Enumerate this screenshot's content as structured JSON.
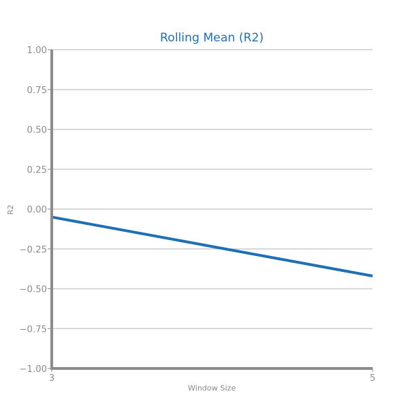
{
  "chart_data": {
    "type": "line",
    "title": "Rolling Mean (R2)",
    "xlabel": "Window Size",
    "ylabel": "R2",
    "x": [
      3,
      5
    ],
    "x_ticks": [
      "3",
      "5"
    ],
    "xlim": [
      3,
      5
    ],
    "ylim": [
      -1.0,
      1.0
    ],
    "y_ticks": [
      1.0,
      0.75,
      0.5,
      0.25,
      0.0,
      -0.25,
      -0.5,
      -0.75,
      -1.0
    ],
    "y_tick_labels": [
      "1.00",
      "0.75",
      "0.50",
      "0.25",
      "0.00",
      "−0.25",
      "−0.50",
      "−0.75",
      "−1.00"
    ],
    "grid": true,
    "legend": false,
    "series": [
      {
        "values": [
          -0.05,
          -0.42
        ],
        "color": "#1f6fb5"
      }
    ],
    "colors": {
      "title": "#1f6fb5",
      "axis": "#8c8c8c",
      "grid": "#cccccc",
      "tick_text": "#8c8c8c"
    }
  }
}
